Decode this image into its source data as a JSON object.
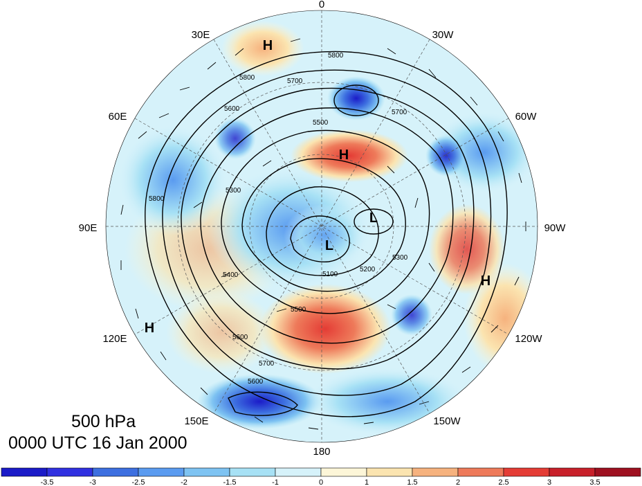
{
  "caption": {
    "level": "500 hPa",
    "time": "0000 UTC 16 Jan 2000"
  },
  "longitude_labels": {
    "lon_0": "0",
    "lon_30w": "30W",
    "lon_60w": "60W",
    "lon_90w": "90W",
    "lon_120w": "120W",
    "lon_150w": "150W",
    "lon_180": "180",
    "lon_150e": "150E",
    "lon_120e": "120E",
    "lon_90e": "90E",
    "lon_60e": "60E",
    "lon_30e": "30E"
  },
  "pressure_centers": {
    "high_atlantic": "H",
    "high_north_sea": "H",
    "high_north_america": "H",
    "high_asia": "H",
    "low_polar": "L",
    "low_canada": "L"
  },
  "contour_labels": {
    "c5800_a": "5800",
    "c5800_b": "5800",
    "c5700_a": "5700",
    "c5700_b": "5700",
    "c5600_a": "5600",
    "c5500_a": "5500",
    "c5500_b": "5500",
    "c5400_a": "5400",
    "c5300_a": "5300",
    "c5200_a": "5200",
    "c5100_a": "5100",
    "c5600_b": "5600",
    "c5700_c": "5700",
    "c5800_c": "5800",
    "c5300_b": "5300",
    "c5600_c": "5600"
  },
  "colorbar": {
    "ticks": [
      "-3.5",
      "-3",
      "-2.5",
      "-2",
      "-1.5",
      "-1",
      "0",
      "1",
      "1.5",
      "2",
      "2.5",
      "3",
      "3.5"
    ],
    "colors": [
      "#1b1bc8",
      "#3030e0",
      "#3d6fe0",
      "#5a9bf0",
      "#7ec3f2",
      "#a7e1f5",
      "#d6f2fa",
      "#fdf6d8",
      "#fbe4b0",
      "#f6b27e",
      "#ee7a5a",
      "#e43c35",
      "#c8202a",
      "#9e1020"
    ]
  },
  "colors": {
    "contour": "#000000",
    "ocean_background": "#ffffff"
  }
}
